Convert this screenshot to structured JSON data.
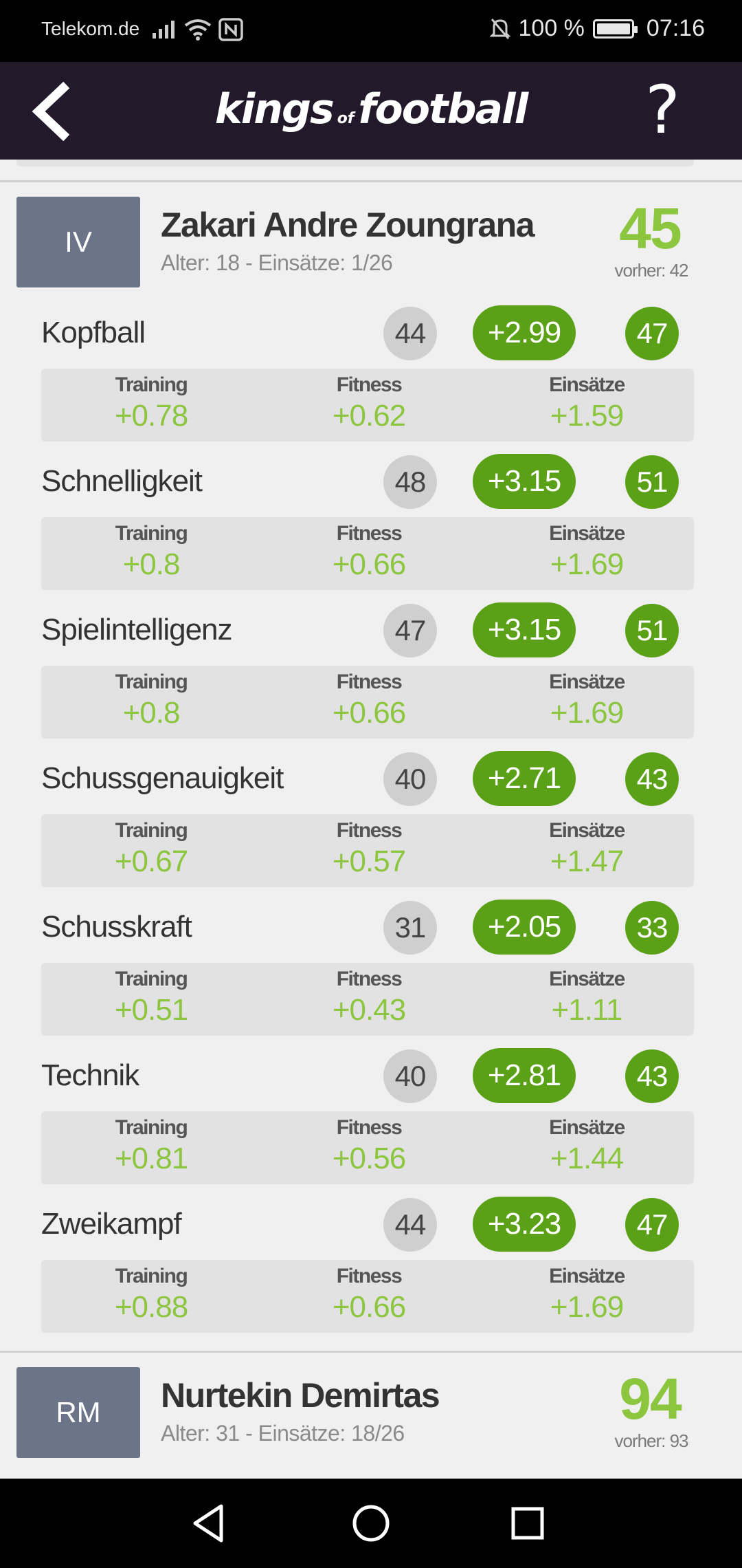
{
  "status_bar": {
    "carrier": "Telekom.de",
    "battery_percent": "100 %",
    "time": "07:16",
    "icons": [
      "signal-icon",
      "wifi-icon",
      "nfc-icon",
      "mute-icon",
      "battery-icon"
    ]
  },
  "header": {
    "logo_part1": "kings",
    "logo_of": "of",
    "logo_part2": "football",
    "help_label": "?",
    "back_icon": "chevron-left-icon"
  },
  "colors": {
    "header_bg": "#221a2b",
    "badge_bg": "#6b7488",
    "accent_green": "#5aa118",
    "light_green": "#8cc63f"
  },
  "players": [
    {
      "position": "IV",
      "name": "Zakari Andre Zoungrana",
      "meta": "Alter: 18 - Einsätze: 1/26",
      "score": "45",
      "previous": "vorher: 42",
      "attributes": [
        {
          "name": "Kopfball",
          "base": "44",
          "delta": "+2.99",
          "total": "47",
          "training": "+0.78",
          "fitness": "+0.62",
          "einsaetze": "+1.59"
        },
        {
          "name": "Schnelligkeit",
          "base": "48",
          "delta": "+3.15",
          "total": "51",
          "training": "+0.8",
          "fitness": "+0.66",
          "einsaetze": "+1.69"
        },
        {
          "name": "Spielintelligenz",
          "base": "47",
          "delta": "+3.15",
          "total": "51",
          "training": "+0.8",
          "fitness": "+0.66",
          "einsaetze": "+1.69"
        },
        {
          "name": "Schussgenauigkeit",
          "base": "40",
          "delta": "+2.71",
          "total": "43",
          "training": "+0.67",
          "fitness": "+0.57",
          "einsaetze": "+1.47"
        },
        {
          "name": "Schusskraft",
          "base": "31",
          "delta": "+2.05",
          "total": "33",
          "training": "+0.51",
          "fitness": "+0.43",
          "einsaetze": "+1.11"
        },
        {
          "name": "Technik",
          "base": "40",
          "delta": "+2.81",
          "total": "43",
          "training": "+0.81",
          "fitness": "+0.56",
          "einsaetze": "+1.44"
        },
        {
          "name": "Zweikampf",
          "base": "44",
          "delta": "+3.23",
          "total": "47",
          "training": "+0.88",
          "fitness": "+0.66",
          "einsaetze": "+1.69"
        }
      ]
    },
    {
      "position": "RM",
      "name": "Nurtekin Demirtas",
      "meta": "Alter: 31 - Einsätze: 18/26",
      "score": "94",
      "previous": "vorher: 93"
    }
  ],
  "breakdown_labels": {
    "training": "Training",
    "fitness": "Fitness",
    "einsaetze": "Einsätze"
  },
  "nav_bar": {
    "buttons": [
      "back-triangle-icon",
      "home-circle-icon",
      "recents-square-icon"
    ]
  }
}
